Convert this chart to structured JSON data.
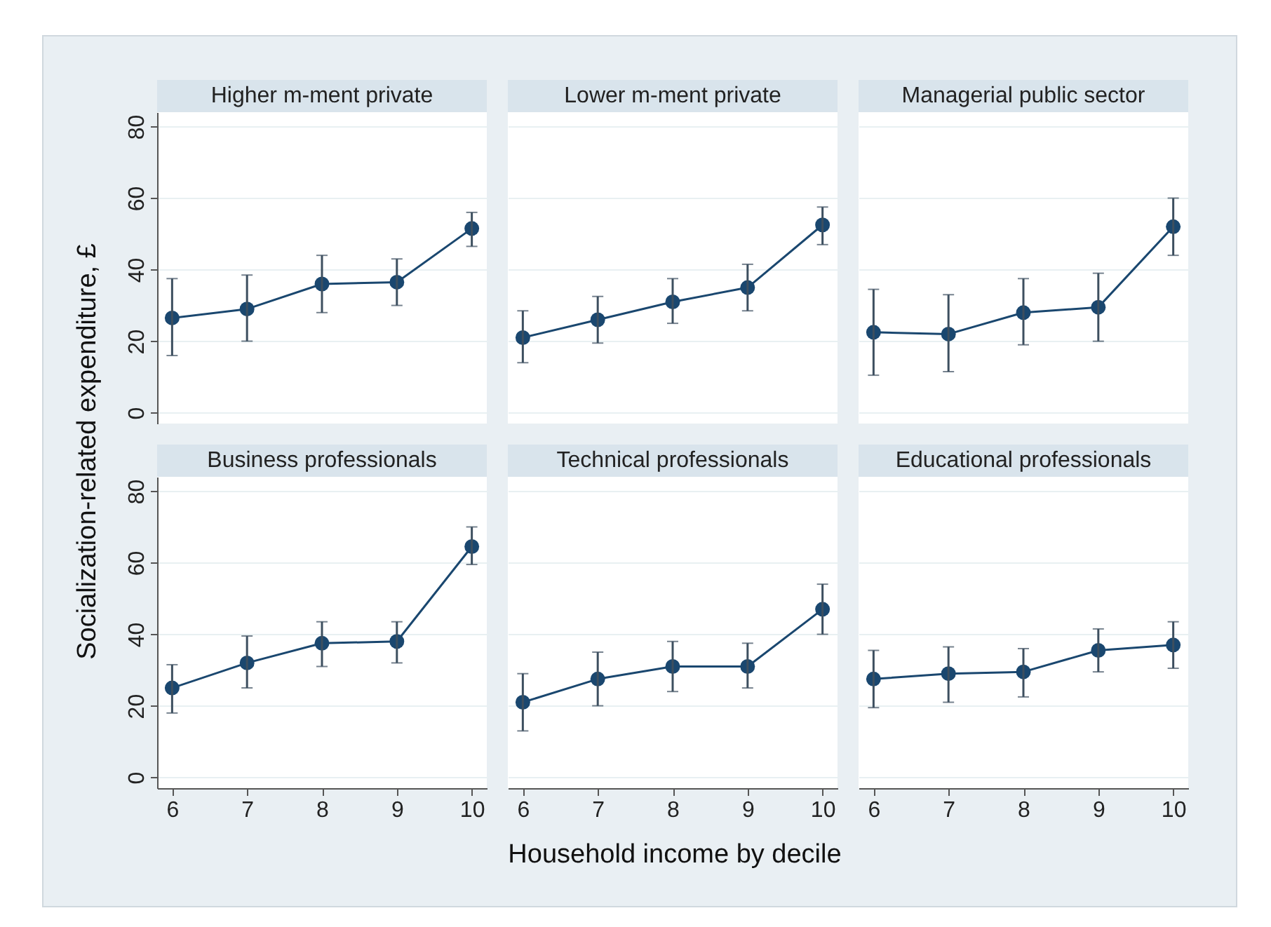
{
  "chart_data": [
    {
      "type": "line",
      "title": "Higher m-ment private",
      "ylabel": "Socialization-related expenditure, £",
      "x": [
        6,
        7,
        8,
        9,
        10
      ],
      "values": [
        26.5,
        29,
        36,
        36.5,
        51.5
      ],
      "errors": [
        [
          16,
          37.5
        ],
        [
          20,
          38.5
        ],
        [
          28,
          44
        ],
        [
          30,
          43
        ],
        [
          46.5,
          56
        ]
      ],
      "color": "#1a476f",
      "xlim": [
        5.8,
        10.2
      ],
      "ylim": [
        -3,
        84
      ],
      "yticks": [
        0,
        20,
        40,
        60,
        80
      ],
      "tick_labels": "y",
      "grid": "y",
      "marker": "circle"
    },
    {
      "type": "line",
      "title": "Lower m-ment private",
      "x": [
        6,
        7,
        8,
        9,
        10
      ],
      "values": [
        21,
        26,
        31,
        35,
        52.5
      ],
      "errors": [
        [
          14,
          28.5
        ],
        [
          19.5,
          32.5
        ],
        [
          25,
          37.5
        ],
        [
          28.5,
          41.5
        ],
        [
          47,
          57.5
        ]
      ],
      "color": "#1a476f",
      "xlim": [
        5.8,
        10.2
      ],
      "ylim": [
        -3,
        84
      ],
      "yticks": [
        0,
        20,
        40,
        60,
        80
      ],
      "tick_labels": false,
      "grid": "y",
      "marker": "circle"
    },
    {
      "type": "line",
      "title": "Managerial public sector",
      "x": [
        6,
        7,
        8,
        9,
        10
      ],
      "values": [
        22.5,
        22,
        28,
        29.5,
        52
      ],
      "errors": [
        [
          10.5,
          34.5
        ],
        [
          11.5,
          33
        ],
        [
          19,
          37.5
        ],
        [
          20,
          39
        ],
        [
          44,
          60
        ]
      ],
      "color": "#1a476f",
      "xlim": [
        5.8,
        10.2
      ],
      "ylim": [
        -3,
        84
      ],
      "yticks": [
        0,
        20,
        40,
        60,
        80
      ],
      "tick_labels": false,
      "grid": "y",
      "marker": "circle"
    },
    {
      "type": "line",
      "title": "Business professionals",
      "x": [
        6,
        7,
        8,
        9,
        10
      ],
      "values": [
        25,
        32,
        37.5,
        38,
        64.5
      ],
      "errors": [
        [
          18,
          31.5
        ],
        [
          25,
          39.5
        ],
        [
          31,
          43.5
        ],
        [
          32,
          43.5
        ],
        [
          59.5,
          70
        ]
      ],
      "color": "#1a476f",
      "xlim": [
        5.8,
        10.2
      ],
      "xticks": [
        6,
        7,
        8,
        9,
        10
      ],
      "ylim": [
        -3,
        84
      ],
      "yticks": [
        0,
        20,
        40,
        60,
        80
      ],
      "grid": "y",
      "marker": "circle"
    },
    {
      "type": "line",
      "title": "Technical professionals",
      "xlabel": "Household income by decile",
      "x": [
        6,
        7,
        8,
        9,
        10
      ],
      "values": [
        21,
        27.5,
        31,
        31,
        47
      ],
      "errors": [
        [
          13,
          29
        ],
        [
          20,
          35
        ],
        [
          24,
          38
        ],
        [
          25,
          37.5
        ],
        [
          40,
          54
        ]
      ],
      "color": "#1a476f",
      "xlim": [
        5.8,
        10.2
      ],
      "xticks": [
        6,
        7,
        8,
        9,
        10
      ],
      "ylim": [
        -3,
        84
      ],
      "yticks": [
        0,
        20,
        40,
        60,
        80
      ],
      "tick_labels": "x",
      "grid": "y",
      "marker": "circle"
    },
    {
      "type": "line",
      "title": "Educational professionals",
      "x": [
        6,
        7,
        8,
        9,
        10
      ],
      "values": [
        27.5,
        29,
        29.5,
        35.5,
        37
      ],
      "errors": [
        [
          19.5,
          35.5
        ],
        [
          21,
          36.5
        ],
        [
          22.5,
          36
        ],
        [
          29.5,
          41.5
        ],
        [
          30.5,
          43.5
        ]
      ],
      "color": "#1a476f",
      "xlim": [
        5.8,
        10.2
      ],
      "xticks": [
        6,
        7,
        8,
        9,
        10
      ],
      "ylim": [
        -3,
        84
      ],
      "yticks": [
        0,
        20,
        40,
        60,
        80
      ],
      "tick_labels": "x",
      "grid": "y",
      "marker": "circle"
    }
  ]
}
